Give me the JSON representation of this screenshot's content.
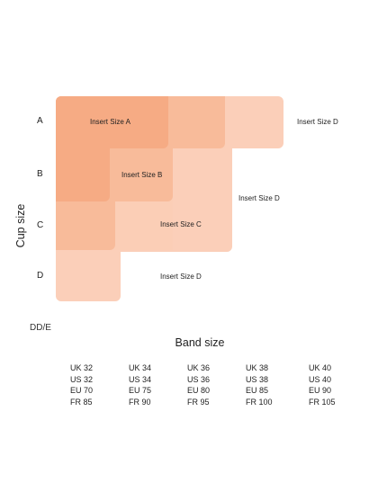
{
  "rows": [
    "A",
    "B",
    "C",
    "D"
  ],
  "y_axis_label": "Cup size",
  "extra_row_label": "DD/E",
  "x_axis_label": "Band size",
  "inserts": {
    "a_label": "Insert Size A",
    "b_label": "Insert Size B",
    "c_label": "Insert Size C",
    "d_row_a_label": "Insert Size D",
    "d_mid_label": "Insert Size D",
    "d_row_d_label": "Insert Size D"
  },
  "band_sizes": [
    {
      "uk": "UK 32",
      "us": "US 32",
      "eu": "EU 70",
      "fr": "FR 85"
    },
    {
      "uk": "UK 34",
      "us": "US 34",
      "eu": "EU 75",
      "fr": "FR 90"
    },
    {
      "uk": "UK 36",
      "us": "US 36",
      "eu": "EU 80",
      "fr": "FR 95"
    },
    {
      "uk": "UK 38",
      "us": "US 38",
      "eu": "EU 85",
      "fr": "FR 100"
    },
    {
      "uk": "UK 40",
      "us": "US 40",
      "eu": "EU 90",
      "fr": "FR 105"
    }
  ],
  "colors": {
    "size_a": "#f6ab84",
    "size_b": "#f8bb9a",
    "size_c": "#fbceb6",
    "size_d": "#fbcfb9"
  }
}
